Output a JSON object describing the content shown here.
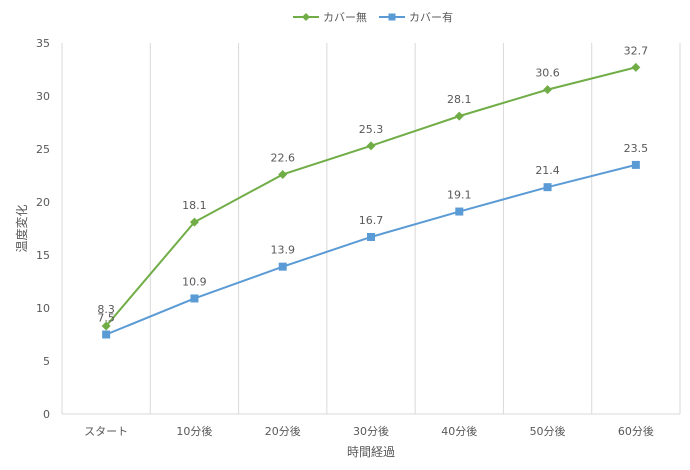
{
  "chart_data": {
    "type": "line",
    "title": "",
    "xlabel": "時間経過",
    "ylabel": "温度変化",
    "categories": [
      "スタート",
      "10分後",
      "20分後",
      "30分後",
      "40分後",
      "50分後",
      "60分後"
    ],
    "ylim": [
      0,
      35
    ],
    "yticks": [
      0,
      5,
      10,
      15,
      20,
      25,
      30,
      35
    ],
    "grid": "vertical",
    "legend_position": "top",
    "series": [
      {
        "name": "カバー無",
        "values": [
          8.3,
          18.1,
          22.6,
          25.3,
          28.1,
          30.6,
          32.7
        ],
        "color": "#70AD47",
        "marker": "diamond"
      },
      {
        "name": "カバー有",
        "values": [
          7.5,
          10.9,
          13.9,
          16.7,
          19.1,
          21.4,
          23.5
        ],
        "color": "#5B9BD5",
        "marker": "square"
      }
    ]
  }
}
